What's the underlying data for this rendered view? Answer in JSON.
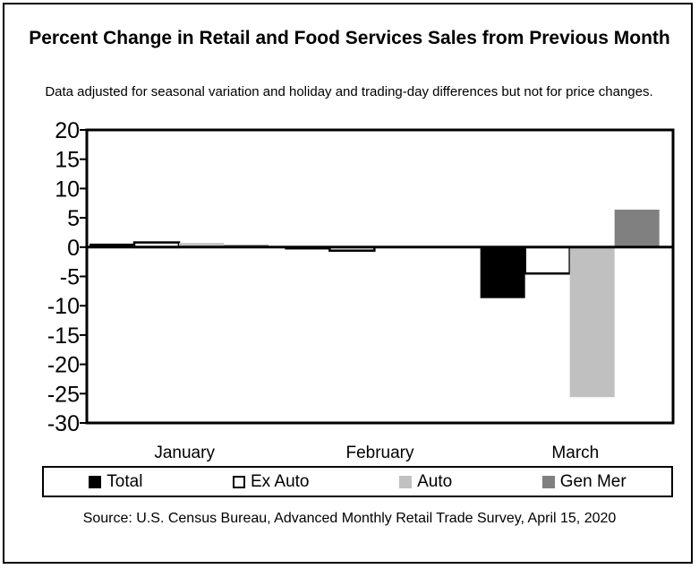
{
  "title": "Percent Change in Retail and Food Services Sales from Previous Month",
  "subtitle": "Data adjusted for seasonal variation and holiday and trading-day differences but not for price changes.",
  "source": "Source: U.S. Census Bureau, Advanced Monthly Retail Trade Survey, April 15, 2020",
  "chart_data": {
    "type": "bar",
    "title": "Percent Change in Retail and Food Services Sales from Previous Month",
    "xlabel": "",
    "ylabel": "",
    "ylim": [
      -30,
      20
    ],
    "yticks": [
      20,
      15,
      10,
      5,
      0,
      -5,
      -10,
      -15,
      -20,
      -25,
      -30
    ],
    "categories": [
      "January",
      "February",
      "March"
    ],
    "legend_position": "bottom",
    "series": [
      {
        "name": "Total",
        "color": "#000000",
        "values": [
          0.6,
          -0.4,
          -8.7
        ]
      },
      {
        "name": "Ex Auto",
        "color": "#ffffff",
        "values": [
          0.8,
          -0.6,
          -4.5
        ]
      },
      {
        "name": "Auto",
        "color": "#c0c0c0",
        "values": [
          0.7,
          -0.1,
          -25.6
        ]
      },
      {
        "name": "Gen Mer",
        "color": "#808080",
        "values": [
          0.4,
          -0.1,
          6.4
        ]
      }
    ]
  }
}
